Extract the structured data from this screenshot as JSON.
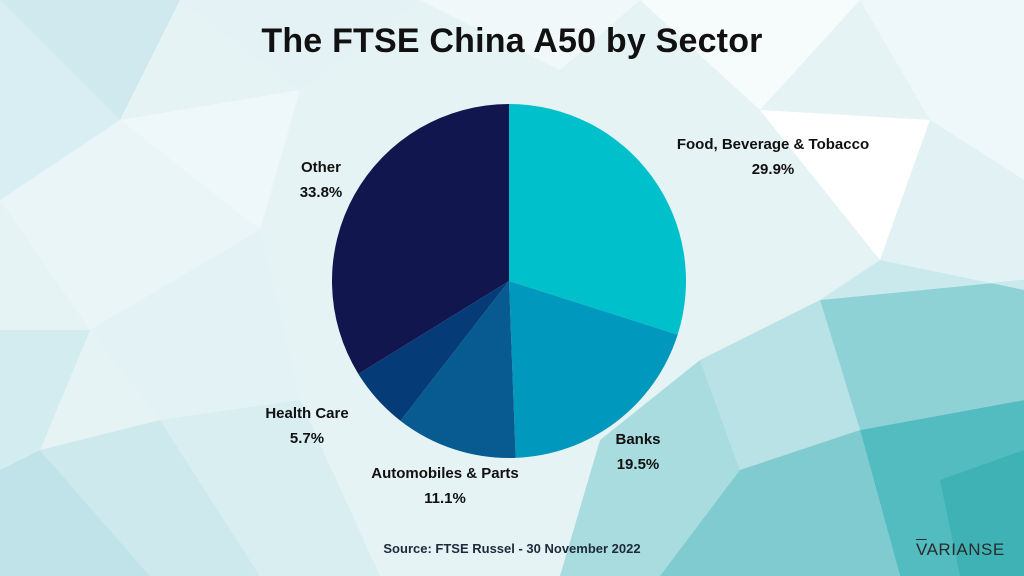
{
  "title": "The FTSE China A50 by Sector",
  "source": "Source: FTSE Russel - 30 November 2022",
  "logo": {
    "first": "V",
    "rest": "ARIANSE"
  },
  "colors": {
    "food": "#00c1cb",
    "banks": "#0098bd",
    "autos": "#075b91",
    "health": "#053c78",
    "other": "#12164f"
  },
  "chart_data": {
    "type": "pie",
    "title": "The FTSE China A50 by Sector",
    "slices": [
      {
        "label": "Food, Beverage & Tobacco",
        "value": 29.9,
        "value_label": "29.9%",
        "color": "#00c1cb"
      },
      {
        "label": "Banks",
        "value": 19.5,
        "value_label": "19.5%",
        "color": "#0098bd"
      },
      {
        "label": "Automobiles & Parts",
        "value": 11.1,
        "value_label": "11.1%",
        "color": "#075b91"
      },
      {
        "label": "Health Care",
        "value": 5.7,
        "value_label": "5.7%",
        "color": "#053c78"
      },
      {
        "label": "Other",
        "value": 33.8,
        "value_label": "33.8%",
        "color": "#12164f"
      }
    ],
    "start_angle": "12 o'clock",
    "direction": "clockwise",
    "legend": "none",
    "labels": "outside"
  }
}
